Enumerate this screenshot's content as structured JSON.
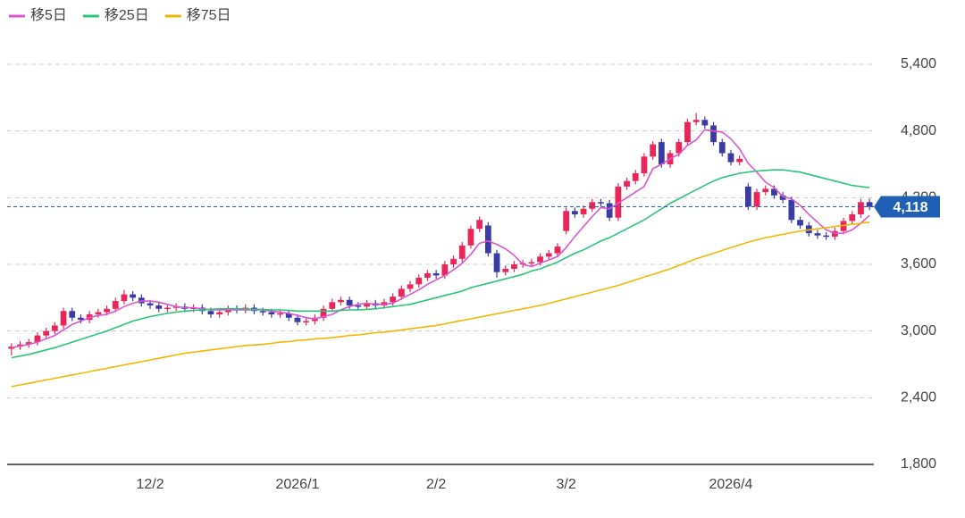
{
  "chart_data": {
    "type": "candlestick",
    "categories": [
      null,
      null,
      null,
      null,
      null,
      null,
      null,
      null,
      null,
      null,
      null,
      null,
      null,
      null,
      null,
      null,
      "12/2",
      null,
      null,
      null,
      null,
      null,
      null,
      null,
      null,
      null,
      null,
      null,
      null,
      null,
      null,
      null,
      null,
      "2026/1",
      null,
      null,
      null,
      null,
      null,
      null,
      null,
      null,
      null,
      null,
      null,
      null,
      null,
      null,
      null,
      "2/2",
      null,
      null,
      null,
      null,
      null,
      null,
      null,
      null,
      null,
      null,
      null,
      null,
      null,
      null,
      "3/2",
      null,
      null,
      null,
      null,
      null,
      null,
      null,
      null,
      null,
      null,
      null,
      null,
      null,
      null,
      null,
      null,
      null,
      null,
      "2026/4",
      null,
      null,
      null,
      null,
      null,
      null,
      null,
      null,
      null,
      null,
      null,
      null,
      null,
      null,
      null,
      null
    ],
    "open": [
      2840,
      2860,
      2880,
      2900,
      2960,
      3000,
      3050,
      3180,
      3120,
      3100,
      3150,
      3170,
      3200,
      3270,
      3330,
      3300,
      3250,
      3230,
      3200,
      3210,
      3220,
      3200,
      3210,
      3180,
      3150,
      3170,
      3200,
      3190,
      3210,
      3180,
      3170,
      3150,
      3160,
      3120,
      3080,
      3090,
      3120,
      3200,
      3260,
      3280,
      3230,
      3220,
      3250,
      3230,
      3260,
      3310,
      3380,
      3420,
      3480,
      3520,
      3500,
      3600,
      3650,
      3770,
      3920,
      3950,
      3700,
      3530,
      3560,
      3600,
      3610,
      3620,
      3670,
      3700,
      3900,
      4080,
      4050,
      4100,
      4160,
      4150,
      4020,
      4300,
      4350,
      4420,
      4570,
      4700,
      4500,
      4600,
      4700,
      4880,
      4900,
      4850,
      4700,
      4600,
      4520,
      4300,
      4120,
      4250,
      4280,
      4220,
      4180,
      4000,
      3950,
      3880,
      3860,
      3850,
      3900,
      3990,
      4050,
      4160
    ],
    "high": [
      2890,
      2910,
      2930,
      2990,
      3030,
      3080,
      3210,
      3210,
      3150,
      3180,
      3200,
      3230,
      3300,
      3370,
      3360,
      3330,
      3280,
      3260,
      3240,
      3250,
      3250,
      3240,
      3240,
      3210,
      3200,
      3230,
      3230,
      3240,
      3240,
      3210,
      3200,
      3190,
      3190,
      3150,
      3120,
      3150,
      3230,
      3290,
      3310,
      3310,
      3260,
      3280,
      3280,
      3290,
      3340,
      3410,
      3450,
      3510,
      3550,
      3550,
      3630,
      3680,
      3800,
      3950,
      4030,
      3980,
      3730,
      3590,
      3630,
      3640,
      3650,
      3700,
      3730,
      3790,
      4110,
      4110,
      4130,
      4190,
      4190,
      4180,
      4330,
      4380,
      4450,
      4600,
      4710,
      4730,
      4630,
      4730,
      4910,
      4960,
      4930,
      4880,
      4730,
      4630,
      4580,
      4330,
      4280,
      4310,
      4310,
      4250,
      4210,
      4030,
      3980,
      3910,
      3890,
      3930,
      4020,
      4080,
      4190,
      4190
    ],
    "low": [
      2780,
      2830,
      2850,
      2870,
      2930,
      2970,
      3020,
      3090,
      3070,
      3070,
      3120,
      3140,
      3170,
      3240,
      3270,
      3220,
      3200,
      3170,
      3170,
      3180,
      3170,
      3170,
      3150,
      3120,
      3120,
      3140,
      3160,
      3160,
      3150,
      3140,
      3120,
      3120,
      3090,
      3050,
      3050,
      3060,
      3090,
      3170,
      3230,
      3200,
      3190,
      3190,
      3200,
      3200,
      3230,
      3280,
      3350,
      3390,
      3450,
      3470,
      3470,
      3570,
      3620,
      3740,
      3890,
      3670,
      3480,
      3500,
      3530,
      3570,
      3580,
      3590,
      3640,
      3670,
      3870,
      4020,
      4020,
      4070,
      4120,
      3990,
      3990,
      4270,
      4320,
      4390,
      4540,
      4470,
      4470,
      4570,
      4670,
      4850,
      4820,
      4670,
      4570,
      4490,
      4490,
      4090,
      4090,
      4220,
      4190,
      4150,
      3970,
      3920,
      3850,
      3830,
      3820,
      3820,
      3870,
      3960,
      4020,
      4088
    ],
    "close": [
      2860,
      2880,
      2900,
      2960,
      3000,
      3050,
      3180,
      3120,
      3100,
      3150,
      3170,
      3200,
      3270,
      3330,
      3300,
      3250,
      3230,
      3200,
      3210,
      3220,
      3200,
      3210,
      3180,
      3150,
      3170,
      3200,
      3190,
      3210,
      3180,
      3170,
      3150,
      3160,
      3120,
      3080,
      3090,
      3120,
      3200,
      3260,
      3280,
      3230,
      3220,
      3250,
      3230,
      3260,
      3310,
      3380,
      3420,
      3480,
      3520,
      3500,
      3600,
      3650,
      3770,
      3920,
      4000,
      3700,
      3530,
      3560,
      3600,
      3610,
      3620,
      3670,
      3700,
      3760,
      4080,
      4050,
      4100,
      4160,
      4150,
      4020,
      4300,
      4350,
      4420,
      4570,
      4680,
      4500,
      4600,
      4700,
      4880,
      4900,
      4850,
      4700,
      4600,
      4520,
      4550,
      4120,
      4250,
      4280,
      4220,
      4180,
      4000,
      3950,
      3880,
      3860,
      3850,
      3900,
      3990,
      4050,
      4160,
      4118
    ],
    "up_color": "#e8265a",
    "down_color": "#3b3ba6",
    "series": [
      {
        "name": "移5日",
        "color": "#d957d0",
        "values": [
          2850,
          2865,
          2880,
          2900,
          2930,
          2960,
          3010,
          3060,
          3090,
          3120,
          3140,
          3150,
          3180,
          3220,
          3250,
          3270,
          3270,
          3260,
          3240,
          3220,
          3210,
          3210,
          3200,
          3190,
          3190,
          3190,
          3190,
          3190,
          3190,
          3190,
          3180,
          3170,
          3160,
          3140,
          3120,
          3110,
          3130,
          3150,
          3190,
          3220,
          3240,
          3250,
          3240,
          3240,
          3250,
          3290,
          3330,
          3370,
          3420,
          3460,
          3500,
          3550,
          3610,
          3690,
          3790,
          3810,
          3780,
          3740,
          3680,
          3600,
          3580,
          3610,
          3640,
          3670,
          3750,
          3850,
          3940,
          4030,
          4110,
          4100,
          4150,
          4200,
          4250,
          4300,
          4460,
          4500,
          4550,
          4590,
          4670,
          4720,
          4810,
          4800,
          4790,
          4730,
          4640,
          4510,
          4430,
          4340,
          4290,
          4210,
          4190,
          4130,
          4050,
          3980,
          3910,
          3880,
          3880,
          3910,
          3970,
          4040
        ]
      },
      {
        "name": "移25日",
        "color": "#2bc47a",
        "values": [
          2760,
          2775,
          2790,
          2810,
          2830,
          2850,
          2875,
          2900,
          2925,
          2950,
          2975,
          3000,
          3030,
          3060,
          3090,
          3110,
          3130,
          3145,
          3160,
          3170,
          3180,
          3185,
          3190,
          3195,
          3200,
          3200,
          3200,
          3200,
          3195,
          3195,
          3190,
          3190,
          3185,
          3180,
          3180,
          3180,
          3180,
          3180,
          3185,
          3190,
          3190,
          3195,
          3200,
          3210,
          3220,
          3230,
          3240,
          3260,
          3280,
          3300,
          3320,
          3340,
          3360,
          3390,
          3410,
          3430,
          3450,
          3470,
          3490,
          3510,
          3540,
          3560,
          3590,
          3620,
          3660,
          3700,
          3730,
          3770,
          3810,
          3840,
          3880,
          3920,
          3960,
          4000,
          4050,
          4100,
          4150,
          4190,
          4230,
          4270,
          4310,
          4350,
          4380,
          4400,
          4420,
          4430,
          4440,
          4445,
          4450,
          4450,
          4440,
          4430,
          4410,
          4390,
          4370,
          4350,
          4330,
          4310,
          4300,
          4290
        ]
      },
      {
        "name": "移75日",
        "color": "#f2b705",
        "values": [
          2500,
          2515,
          2530,
          2545,
          2560,
          2575,
          2590,
          2605,
          2620,
          2635,
          2650,
          2665,
          2680,
          2695,
          2710,
          2725,
          2740,
          2755,
          2770,
          2785,
          2800,
          2810,
          2820,
          2830,
          2840,
          2850,
          2860,
          2870,
          2875,
          2880,
          2890,
          2900,
          2905,
          2915,
          2920,
          2930,
          2935,
          2940,
          2950,
          2960,
          2965,
          2975,
          2985,
          2990,
          3000,
          3010,
          3020,
          3030,
          3040,
          3050,
          3065,
          3080,
          3095,
          3110,
          3125,
          3140,
          3155,
          3170,
          3185,
          3200,
          3215,
          3230,
          3250,
          3270,
          3290,
          3310,
          3330,
          3350,
          3370,
          3390,
          3410,
          3435,
          3460,
          3485,
          3510,
          3535,
          3560,
          3590,
          3620,
          3650,
          3675,
          3700,
          3725,
          3750,
          3775,
          3800,
          3820,
          3840,
          3855,
          3870,
          3885,
          3900,
          3910,
          3920,
          3930,
          3940,
          3950,
          3960,
          3970,
          3980
        ]
      }
    ],
    "ylim": [
      1800,
      5400
    ],
    "yticks": [
      {
        "value": 1800,
        "label": "1,800"
      },
      {
        "value": 2400,
        "label": "2,400"
      },
      {
        "value": 3000,
        "label": "3,000"
      },
      {
        "value": 3600,
        "label": "3,600"
      },
      {
        "value": 4200,
        "label": "4,200"
      },
      {
        "value": 4800,
        "label": "4,800"
      },
      {
        "value": 5400,
        "label": "5,400"
      }
    ],
    "grid": true,
    "last_price": {
      "value": 4118,
      "label": "4,118"
    },
    "last_color": "#1f5fb4"
  }
}
